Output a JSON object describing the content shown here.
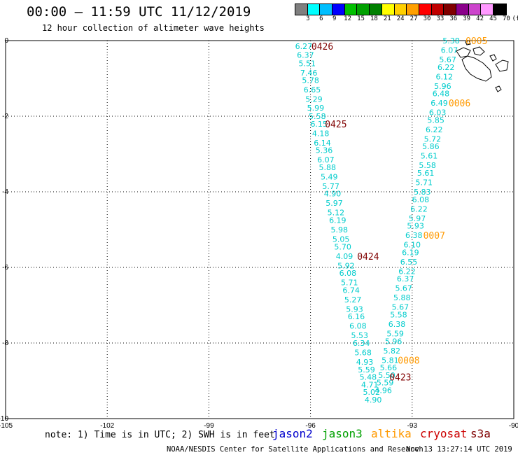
{
  "header": {
    "title": "00:00 – 11:59 UTC 11/12/2019",
    "subtitle": "12 hour collection of altimeter wave heights"
  },
  "colorbar": {
    "colors": [
      "#7f7f7f",
      "#00ffff",
      "#00bfff",
      "#0000ff",
      "#00c000",
      "#00a000",
      "#008000",
      "#ffff00",
      "#ffd000",
      "#ffa000",
      "#ff0000",
      "#c00000",
      "#800000",
      "#8b008b",
      "#cc44cc",
      "#ff99ff",
      "#000000"
    ],
    "labels": [
      "3",
      "6",
      "9",
      "12",
      "15",
      "18",
      "21",
      "24",
      "27",
      "30",
      "33",
      "36",
      "39",
      "42",
      "45",
      "70",
      "(ft)"
    ]
  },
  "chart_data": {
    "type": "scatter",
    "xlabel": "",
    "ylabel": "",
    "xlim": [
      -105,
      -90
    ],
    "ylim": [
      -10,
      0
    ],
    "x_ticks": [
      "-105",
      "-102",
      "-99",
      "-96",
      "-93",
      "-90"
    ],
    "y_ticks": [
      "0",
      "-2",
      "-4",
      "-6",
      "-8",
      "-10"
    ],
    "grid": true,
    "series": [
      {
        "name": "cryosat",
        "color": "#00cccc",
        "values": [
          {
            "x": -96.2,
            "y": -0.15,
            "v": "6.27"
          },
          {
            "x": -96.15,
            "y": -0.38,
            "v": "6.37"
          },
          {
            "x": -96.1,
            "y": -0.6,
            "v": "5.51"
          },
          {
            "x": -96.05,
            "y": -0.85,
            "v": "7.46"
          },
          {
            "x": -96.0,
            "y": -1.05,
            "v": "5.78"
          },
          {
            "x": -95.95,
            "y": -1.3,
            "v": "6.65"
          },
          {
            "x": -95.9,
            "y": -1.55,
            "v": "5.29"
          },
          {
            "x": -95.85,
            "y": -1.78,
            "v": "5.99"
          },
          {
            "x": -95.8,
            "y": -2.0,
            "v": "5.58"
          },
          {
            "x": -95.75,
            "y": -2.2,
            "v": "6.15"
          },
          {
            "x": -95.7,
            "y": -2.45,
            "v": "4.18"
          },
          {
            "x": -95.65,
            "y": -2.7,
            "v": "6.14"
          },
          {
            "x": -95.6,
            "y": -2.9,
            "v": "5.36"
          },
          {
            "x": -95.55,
            "y": -3.15,
            "v": "6.07"
          },
          {
            "x": -95.5,
            "y": -3.35,
            "v": "5.88"
          },
          {
            "x": -95.45,
            "y": -3.6,
            "v": "5.49"
          },
          {
            "x": -95.4,
            "y": -3.85,
            "v": "5.77"
          },
          {
            "x": -95.35,
            "y": -4.05,
            "v": "4.90"
          },
          {
            "x": -95.3,
            "y": -4.3,
            "v": "5.97"
          },
          {
            "x": -95.25,
            "y": -4.55,
            "v": "5.12"
          },
          {
            "x": -95.2,
            "y": -4.75,
            "v": "6.19"
          },
          {
            "x": -95.15,
            "y": -5.0,
            "v": "5.98"
          },
          {
            "x": -95.1,
            "y": -5.25,
            "v": "5.05"
          },
          {
            "x": -95.05,
            "y": -5.45,
            "v": "5.70"
          },
          {
            "x": -95.0,
            "y": -5.7,
            "v": "4.09"
          },
          {
            "x": -94.95,
            "y": -5.95,
            "v": "5.92"
          },
          {
            "x": -94.9,
            "y": -6.15,
            "v": "6.08"
          },
          {
            "x": -94.85,
            "y": -6.4,
            "v": "5.71"
          },
          {
            "x": -94.8,
            "y": -6.6,
            "v": "6.74"
          },
          {
            "x": -94.75,
            "y": -6.85,
            "v": "5.27"
          },
          {
            "x": -94.7,
            "y": -7.1,
            "v": "5.93"
          },
          {
            "x": -94.65,
            "y": -7.3,
            "v": "6.16"
          },
          {
            "x": -94.6,
            "y": -7.55,
            "v": "6.08"
          },
          {
            "x": -94.55,
            "y": -7.8,
            "v": "5.53"
          },
          {
            "x": -94.5,
            "y": -8.0,
            "v": "6.34"
          },
          {
            "x": -94.45,
            "y": -8.25,
            "v": "5.68"
          },
          {
            "x": -94.4,
            "y": -8.5,
            "v": "4.93"
          },
          {
            "x": -94.35,
            "y": -8.7,
            "v": "5.59"
          },
          {
            "x": -94.3,
            "y": -8.9,
            "v": "5.48"
          },
          {
            "x": -94.25,
            "y": -9.1,
            "v": "4.71"
          },
          {
            "x": -94.2,
            "y": -9.3,
            "v": "5.02"
          },
          {
            "x": -94.15,
            "y": -9.5,
            "v": "4.90"
          }
        ]
      },
      {
        "name": "altika",
        "color": "#00cccc",
        "values": [
          {
            "x": -91.85,
            "y": 0.0,
            "v": "5.38"
          },
          {
            "x": -91.9,
            "y": -0.25,
            "v": "6.07"
          },
          {
            "x": -91.95,
            "y": -0.5,
            "v": "5.67"
          },
          {
            "x": -92.0,
            "y": -0.7,
            "v": "6.22"
          },
          {
            "x": -92.05,
            "y": -0.95,
            "v": "6.12"
          },
          {
            "x": -92.1,
            "y": -1.2,
            "v": "5.96"
          },
          {
            "x": -92.15,
            "y": -1.4,
            "v": "6.48"
          },
          {
            "x": -92.2,
            "y": -1.65,
            "v": "6.49"
          },
          {
            "x": -92.25,
            "y": -1.9,
            "v": "6.03"
          },
          {
            "x": -92.3,
            "y": -2.1,
            "v": "5.85"
          },
          {
            "x": -92.35,
            "y": -2.35,
            "v": "6.22"
          },
          {
            "x": -92.4,
            "y": -2.6,
            "v": "5.72"
          },
          {
            "x": -92.45,
            "y": -2.8,
            "v": "5.86"
          },
          {
            "x": -92.5,
            "y": -3.05,
            "v": "5.61"
          },
          {
            "x": -92.55,
            "y": -3.3,
            "v": "5.58"
          },
          {
            "x": -92.6,
            "y": -3.5,
            "v": "5.61"
          },
          {
            "x": -92.65,
            "y": -3.75,
            "v": "5.71"
          },
          {
            "x": -92.7,
            "y": -4.0,
            "v": "5.83"
          },
          {
            "x": -92.75,
            "y": -4.2,
            "v": "6.08"
          },
          {
            "x": -92.8,
            "y": -4.45,
            "v": "6.22"
          },
          {
            "x": -92.85,
            "y": -4.7,
            "v": "5.97"
          },
          {
            "x": -92.9,
            "y": -4.9,
            "v": "5.93"
          },
          {
            "x": -92.95,
            "y": -5.15,
            "v": "6.38"
          },
          {
            "x": -93.0,
            "y": -5.4,
            "v": "6.10"
          },
          {
            "x": -93.05,
            "y": -5.6,
            "v": "6.19"
          },
          {
            "x": -93.1,
            "y": -5.85,
            "v": "6.55"
          },
          {
            "x": -93.15,
            "y": -6.1,
            "v": "6.22"
          },
          {
            "x": -93.2,
            "y": -6.3,
            "v": "6.37"
          },
          {
            "x": -93.25,
            "y": -6.55,
            "v": "5.67"
          },
          {
            "x": -93.3,
            "y": -6.8,
            "v": "5.88"
          },
          {
            "x": -93.35,
            "y": -7.05,
            "v": "5.67"
          },
          {
            "x": -93.4,
            "y": -7.25,
            "v": "5.58"
          },
          {
            "x": -93.45,
            "y": -7.5,
            "v": "6.38"
          },
          {
            "x": -93.5,
            "y": -7.75,
            "v": "5.59"
          },
          {
            "x": -93.55,
            "y": -7.95,
            "v": "5.96"
          },
          {
            "x": -93.6,
            "y": -8.2,
            "v": "5.82"
          },
          {
            "x": -93.65,
            "y": -8.45,
            "v": "5.81"
          },
          {
            "x": -93.7,
            "y": -8.65,
            "v": "5.66"
          },
          {
            "x": -93.75,
            "y": -8.85,
            "v": "5.50"
          },
          {
            "x": -93.8,
            "y": -9.05,
            "v": "5.59"
          },
          {
            "x": -93.85,
            "y": -9.25,
            "v": "4.96"
          }
        ]
      }
    ],
    "time_labels": [
      {
        "text": "0426",
        "x": -95.65,
        "y": -0.15,
        "color": "#800000"
      },
      {
        "text": "0425",
        "x": -95.25,
        "y": -2.2,
        "color": "#800000"
      },
      {
        "text": "0424",
        "x": -94.3,
        "y": -5.7,
        "color": "#800000"
      },
      {
        "text": "0423",
        "x": -93.35,
        "y": -8.9,
        "color": "#800000"
      },
      {
        "text": "0005",
        "x": -91.1,
        "y": 0.0,
        "color": "#ff9900"
      },
      {
        "text": "0006",
        "x": -91.6,
        "y": -1.65,
        "color": "#ff9900"
      },
      {
        "text": "0007",
        "x": -92.35,
        "y": -5.15,
        "color": "#ff9900"
      },
      {
        "text": "0008",
        "x": -93.1,
        "y": -8.45,
        "color": "#ff9900"
      }
    ]
  },
  "note": "note: 1) Time is in UTC; 2) SWH is in feet",
  "legend": [
    {
      "label": "jason2",
      "color": "#0000cc"
    },
    {
      "label": "jason3",
      "color": "#00a000"
    },
    {
      "label": "altika",
      "color": "#ff9900"
    },
    {
      "label": "cryosat",
      "color": "#cc0000"
    },
    {
      "label": "s3a",
      "color": "#800000"
    }
  ],
  "footer": {
    "credit": "NOAA/NESDIS Center for Satellite Applications and Research",
    "timestamp": "Nov 13 13:27:14 UTC 2019"
  }
}
